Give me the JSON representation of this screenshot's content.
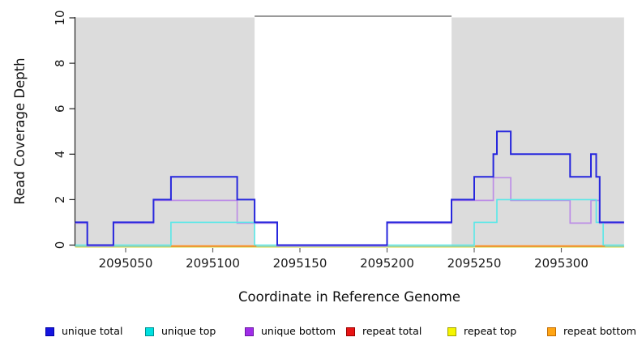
{
  "chart_data": {
    "type": "line",
    "subtype": "step-coverage",
    "title": "",
    "xlabel": "Coordinate in Reference Genome",
    "ylabel": "Read Coverage Depth",
    "xlim": [
      2095021,
      2095336
    ],
    "ylim": [
      0,
      10
    ],
    "x_ticks": [
      2095050,
      2095100,
      2095150,
      2095200,
      2095250,
      2095300
    ],
    "y_ticks": [
      0,
      2,
      4,
      6,
      8,
      10
    ],
    "grid": false,
    "legend_position": "bottom",
    "unique_region_shading": {
      "color": "#dcdcdc",
      "regions": [
        [
          2095021,
          2095124
        ],
        [
          2095237,
          2095336
        ]
      ]
    },
    "repeat_clip_line": {
      "value": 10,
      "x": [
        2095124,
        2095237
      ],
      "color": "#9a9a9a",
      "width": 2
    },
    "zero_baseline": {
      "color": "#96d296",
      "width": 1.4,
      "x": [
        2095021,
        2095336
      ]
    },
    "series": [
      {
        "id": "repeat-total",
        "name": "repeat total",
        "color": "#dd2222",
        "width": 1,
        "dy": 1.8,
        "segments": [
          [
            [
              2095021,
              0
            ],
            [
              2095336,
              0
            ]
          ]
        ]
      },
      {
        "id": "repeat-top",
        "name": "repeat top",
        "color": "#e9e99c",
        "width": 1.3,
        "dy": 2.8,
        "segments": [
          [
            [
              2095021,
              0
            ],
            [
              2095336,
              0
            ]
          ]
        ]
      },
      {
        "id": "repeat-bottom",
        "name": "repeat bottom",
        "color": "#ff8c1e",
        "width": 2,
        "dy": 1.3,
        "segments": [
          [
            [
              2095076,
              0
            ],
            [
              2095125,
              0
            ]
          ],
          [
            [
              2095250.5,
              0
            ],
            [
              2095325,
              0
            ]
          ]
        ]
      },
      {
        "id": "unique-bottom",
        "name": "unique bottom",
        "color": "#bd8ee6",
        "width": 1.7,
        "dy": 1,
        "segments": [
          [
            [
              2095021,
              1
            ],
            [
              2095028,
              0
            ],
            [
              2095043,
              1
            ],
            [
              2095066,
              2
            ],
            [
              2095114,
              1
            ],
            [
              2095137,
              0
            ],
            [
              2095200,
              1
            ],
            [
              2095237,
              2
            ],
            [
              2095261,
              3
            ],
            [
              2095271,
              2
            ],
            [
              2095305,
              1
            ],
            [
              2095317,
              2
            ],
            [
              2095322,
              1
            ],
            [
              2095336,
              1
            ]
          ]
        ]
      },
      {
        "id": "unique-top",
        "name": "unique top",
        "color": "#58e8e8",
        "width": 1.6,
        "dy": 0,
        "segments": [
          [
            [
              2095021,
              0
            ],
            [
              2095076,
              1
            ],
            [
              2095124,
              0
            ],
            [
              2095250,
              1
            ],
            [
              2095263,
              2
            ],
            [
              2095320,
              1
            ],
            [
              2095324,
              0
            ],
            [
              2095336,
              0
            ]
          ]
        ]
      },
      {
        "id": "unique-total",
        "name": "unique total",
        "color": "#2727dd",
        "width": 2,
        "dy": 0,
        "segments": [
          [
            [
              2095021,
              1
            ],
            [
              2095028,
              0
            ],
            [
              2095043,
              1
            ],
            [
              2095066,
              2
            ],
            [
              2095076,
              3
            ],
            [
              2095114,
              2
            ],
            [
              2095124,
              1
            ],
            [
              2095137,
              0
            ],
            [
              2095200,
              1
            ],
            [
              2095237,
              2
            ],
            [
              2095250,
              3
            ],
            [
              2095261,
              4
            ],
            [
              2095263,
              5
            ],
            [
              2095271,
              4
            ],
            [
              2095305,
              3
            ],
            [
              2095317,
              4
            ],
            [
              2095320,
              3
            ],
            [
              2095322,
              1
            ],
            [
              2095336,
              1
            ]
          ]
        ]
      }
    ]
  },
  "legend": {
    "items": [
      {
        "label": "unique total",
        "fill": "#1414e0",
        "border": "#0000a0"
      },
      {
        "label": "unique top",
        "fill": "#00e0e0",
        "border": "#009090"
      },
      {
        "label": "unique bottom",
        "fill": "#a02ce8",
        "border": "#6a1aa0"
      },
      {
        "label": "repeat total",
        "fill": "#e81414",
        "border": "#990000"
      },
      {
        "label": "repeat top",
        "fill": "#f5f500",
        "border": "#a0a000"
      },
      {
        "label": "repeat bottom",
        "fill": "#ffa514",
        "border": "#c06a00"
      }
    ]
  },
  "axes_style": {
    "y_axis_color": "#222222",
    "x_tick_color": "#666666"
  }
}
